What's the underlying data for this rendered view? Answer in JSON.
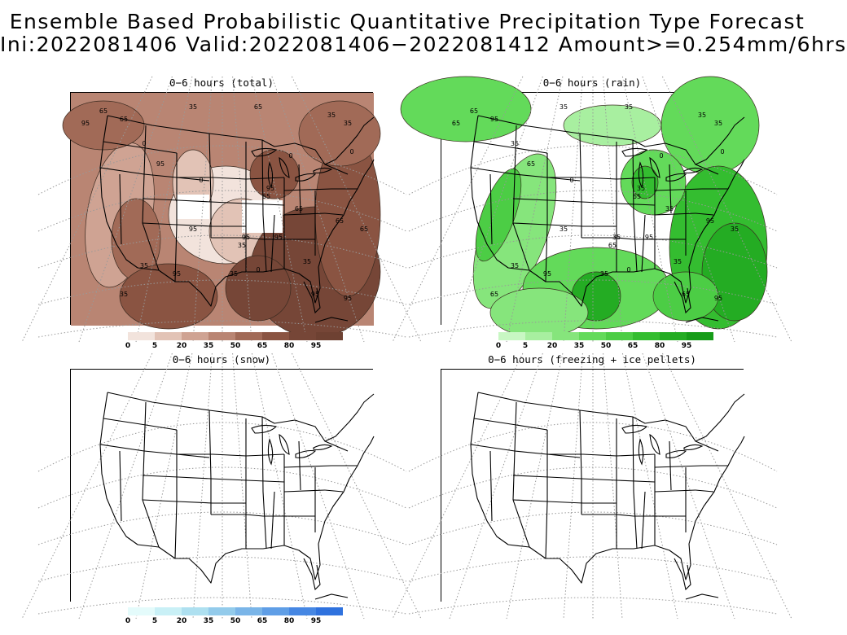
{
  "header": {
    "line1": "Ensemble Based Probabilistic Quantitative Precipitation Type Forecast",
    "line2": "Ini:2022081406 Valid:2022081406−2022081412 Amount>=0.254mm/6hrs"
  },
  "panels": [
    {
      "title": "0−6 hours (total)",
      "scheme": "brown"
    },
    {
      "title": "0−6 hours (rain)",
      "scheme": "green"
    },
    {
      "title": "0−6 hours (snow)",
      "scheme": "blue"
    },
    {
      "title": "0−6 hours (freezing + ice pellets)",
      "scheme": "none"
    }
  ],
  "colorbar_labels": [
    "0",
    "5",
    "20",
    "35",
    "50",
    "65",
    "80",
    "95"
  ],
  "colors": {
    "brown": [
      "#f2e3dc",
      "#e2c3b6",
      "#cfa393",
      "#b98573",
      "#a16a57",
      "#8a5442",
      "#764637",
      "#6e4132"
    ],
    "green": [
      "#c8f7c3",
      "#a8efa0",
      "#86e57c",
      "#63da5a",
      "#4ccd45",
      "#34bd30",
      "#24ac23",
      "#169c18"
    ],
    "blue": [
      "#e4fbfb",
      "#c9f0f6",
      "#aee0f0",
      "#93cbeb",
      "#7ab5e8",
      "#5f9ee6",
      "#4687e3",
      "#2f72de"
    ]
  },
  "contour_labels": {
    "total": [
      "65",
      "65",
      "35",
      "65",
      "35",
      "35",
      "95",
      "95",
      "35",
      "95",
      "65",
      "95",
      "35",
      "95",
      "65",
      "65",
      "35",
      "95",
      "95",
      "65",
      "95",
      "35",
      "95",
      "35",
      "0",
      "0",
      "0",
      "0",
      "0"
    ],
    "rain": [
      "65",
      "95",
      "35",
      "35",
      "35",
      "35",
      "65",
      "35",
      "65",
      "35",
      "65",
      "35",
      "35",
      "65",
      "95",
      "35",
      "35",
      "95",
      "95",
      "35",
      "95",
      "65",
      "65",
      "35",
      "35",
      "0",
      "0",
      "0",
      "0"
    ]
  }
}
